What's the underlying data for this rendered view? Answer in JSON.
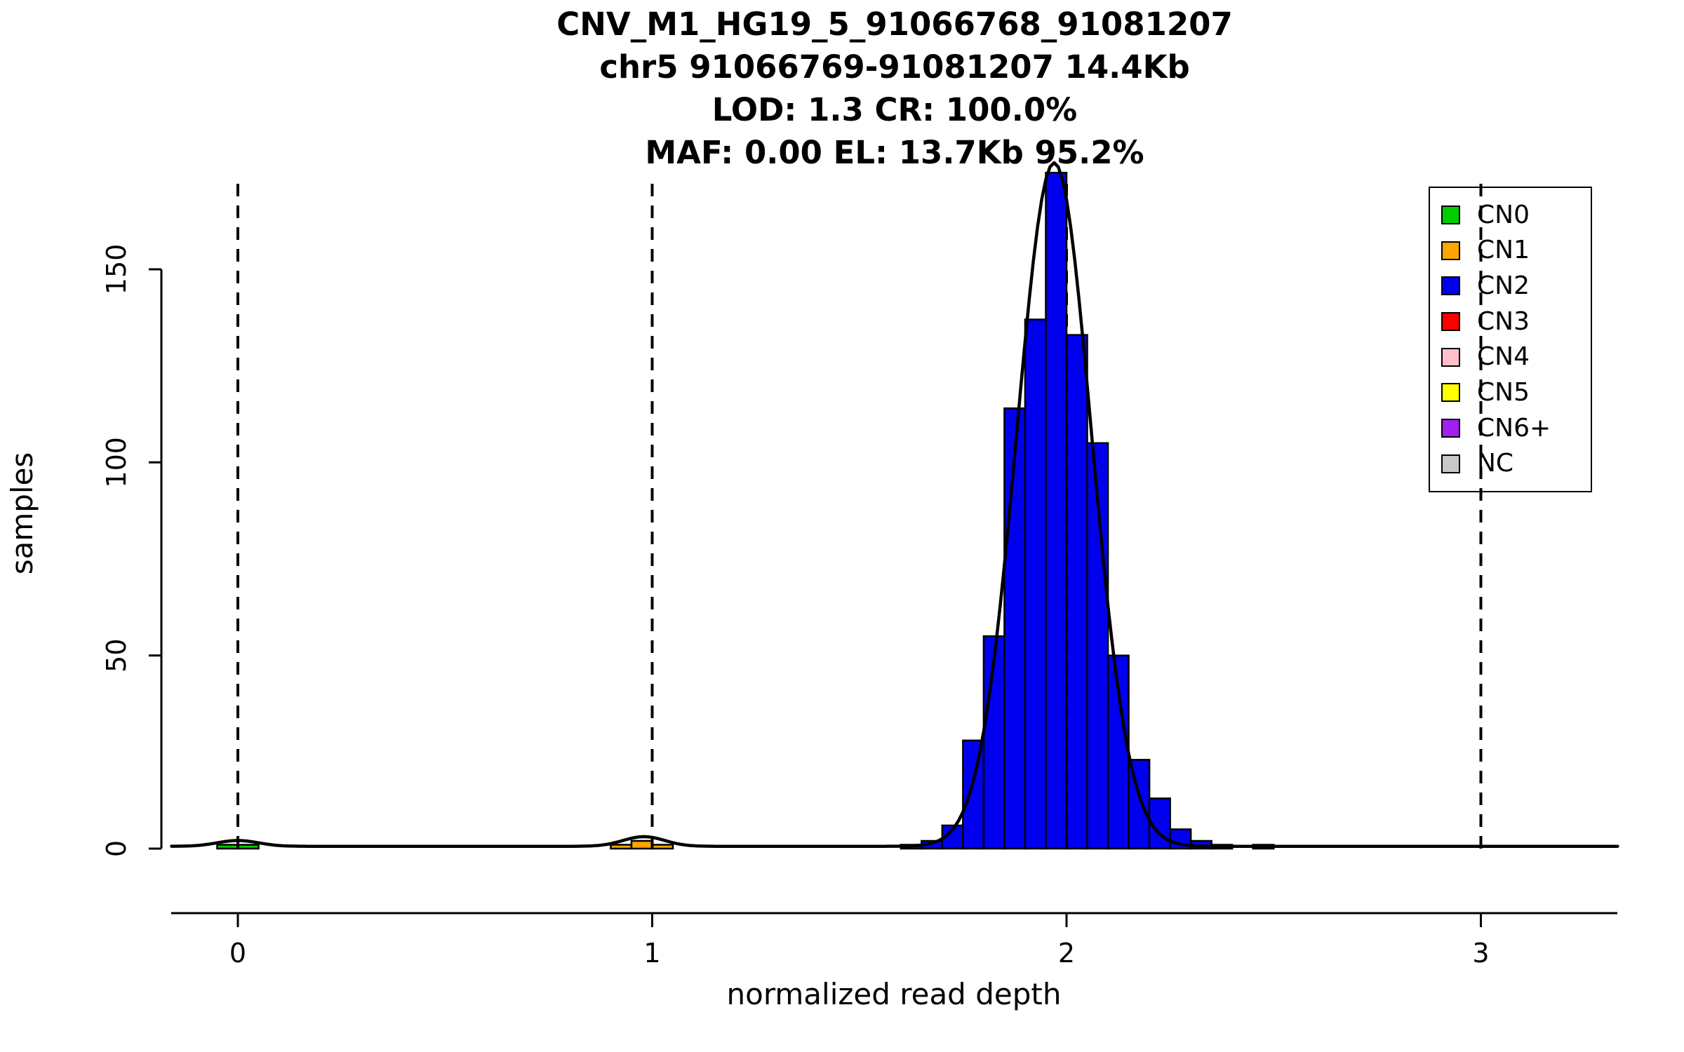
{
  "chart_data": {
    "type": "bar",
    "subtype": "histogram",
    "titles": [
      "CNV_M1_HG19_5_91066768_91081207",
      "chr5 91066769-91081207 14.4Kb",
      "LOD: 1.3 CR: 100.0%",
      "MAF: 0.00 EL: 13.7Kb 95.2%"
    ],
    "xlabel": "normalized read depth",
    "ylabel": "samples",
    "x_ticks": [
      0,
      1,
      2,
      3
    ],
    "y_ticks": [
      0,
      50,
      100,
      150
    ],
    "xlim": [
      -0.16,
      3.33
    ],
    "ylim": [
      0,
      175
    ],
    "grid": false,
    "bin_width": 0.05,
    "bars": [
      {
        "x": -0.05,
        "count": 1,
        "cn": "CN0"
      },
      {
        "x": 0.0,
        "count": 1,
        "cn": "CN0"
      },
      {
        "x": 0.9,
        "count": 1,
        "cn": "CN1"
      },
      {
        "x": 0.95,
        "count": 2,
        "cn": "CN1"
      },
      {
        "x": 1.0,
        "count": 1,
        "cn": "CN1"
      },
      {
        "x": 1.6,
        "count": 1,
        "cn": "CN2"
      },
      {
        "x": 1.65,
        "count": 2,
        "cn": "CN2"
      },
      {
        "x": 1.7,
        "count": 6,
        "cn": "CN2"
      },
      {
        "x": 1.75,
        "count": 28,
        "cn": "CN2"
      },
      {
        "x": 1.8,
        "count": 55,
        "cn": "CN2"
      },
      {
        "x": 1.85,
        "count": 114,
        "cn": "CN2"
      },
      {
        "x": 1.9,
        "count": 137,
        "cn": "CN2"
      },
      {
        "x": 1.95,
        "count": 175,
        "cn": "CN2"
      },
      {
        "x": 2.0,
        "count": 133,
        "cn": "CN2"
      },
      {
        "x": 2.05,
        "count": 105,
        "cn": "CN2"
      },
      {
        "x": 2.1,
        "count": 50,
        "cn": "CN2"
      },
      {
        "x": 2.15,
        "count": 23,
        "cn": "CN2"
      },
      {
        "x": 2.2,
        "count": 13,
        "cn": "CN2"
      },
      {
        "x": 2.25,
        "count": 5,
        "cn": "CN2"
      },
      {
        "x": 2.3,
        "count": 2,
        "cn": "CN2"
      },
      {
        "x": 2.35,
        "count": 1,
        "cn": "CN2"
      },
      {
        "x": 2.45,
        "count": 1,
        "cn": "NC"
      }
    ],
    "dashed_lines_x": [
      0,
      1,
      2,
      3
    ],
    "fit_curve": {
      "baseline": 0.6,
      "components": [
        {
          "mean": 0.0,
          "sd": 0.05,
          "amplitude": 1.5
        },
        {
          "mean": 0.98,
          "sd": 0.05,
          "amplitude": 2.5
        },
        {
          "mean": 1.97,
          "sd": 0.09,
          "amplitude": 177
        }
      ]
    },
    "colors": {
      "curve": "#000000",
      "dashed_line": "#000000"
    },
    "legend": {
      "position": "top-right",
      "items": [
        {
          "label": "CN0",
          "color": "#00CD00"
        },
        {
          "label": "CN1",
          "color": "#FFA500"
        },
        {
          "label": "CN2",
          "color": "#0000EE"
        },
        {
          "label": "CN3",
          "color": "#FF0000"
        },
        {
          "label": "CN4",
          "color": "#FFC0CB"
        },
        {
          "label": "CN5",
          "color": "#FFFF00"
        },
        {
          "label": "CN6+",
          "color": "#A020F0"
        },
        {
          "label": "NC",
          "color": "#C8C8C8"
        }
      ]
    }
  }
}
